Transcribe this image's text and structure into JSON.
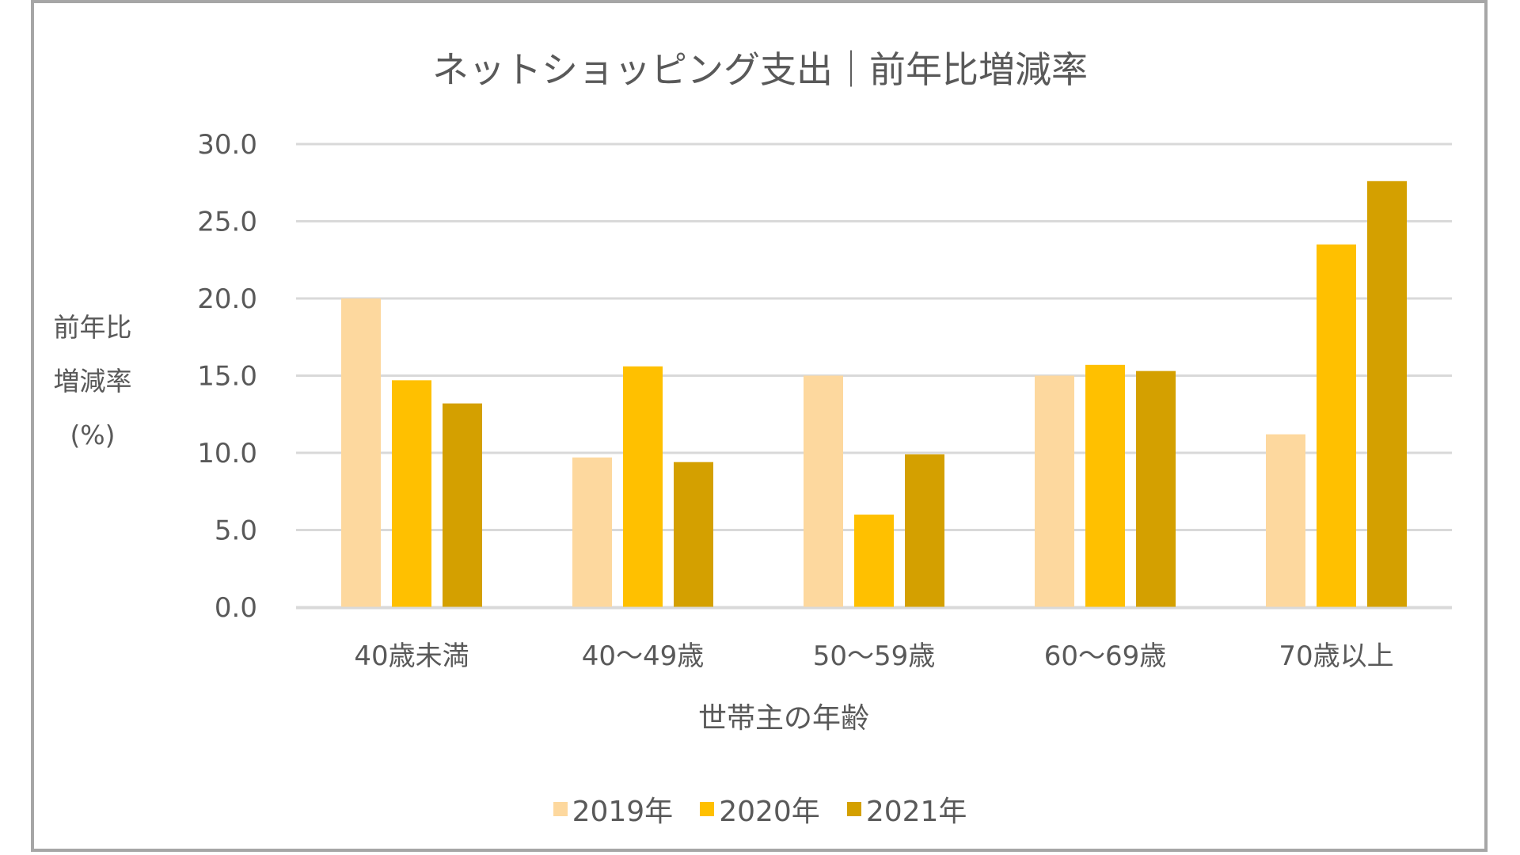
{
  "chart_data": {
    "type": "bar",
    "title": "ネットショッピング支出｜前年比増減率",
    "xlabel": "世帯主の年齢",
    "ylabel_lines": [
      "前年比",
      "増減率",
      "(%)"
    ],
    "categories": [
      "40歳未満",
      "40〜49歳",
      "50〜59歳",
      "60〜69歳",
      "70歳以上"
    ],
    "series": [
      {
        "name": "2019年",
        "color": "#FDD89E",
        "values": [
          20.0,
          9.7,
          15.0,
          15.0,
          11.2
        ]
      },
      {
        "name": "2020年",
        "color": "#FFC000",
        "values": [
          14.7,
          15.6,
          6.0,
          15.7,
          23.5
        ]
      },
      {
        "name": "2021年",
        "color": "#D4A000",
        "values": [
          13.2,
          9.4,
          9.9,
          15.3,
          27.6
        ]
      }
    ],
    "yticks": [
      "0.0",
      "5.0",
      "10.0",
      "15.0",
      "20.0",
      "25.0",
      "30.0"
    ],
    "ytick_values": [
      0,
      5,
      10,
      15,
      20,
      25,
      30
    ],
    "ylim": [
      0,
      30
    ],
    "grid": true,
    "legend_position": "bottom"
  },
  "colors": {
    "text": "#595959",
    "grid": "#d9d9d9",
    "frame": "#a6a6a6"
  }
}
